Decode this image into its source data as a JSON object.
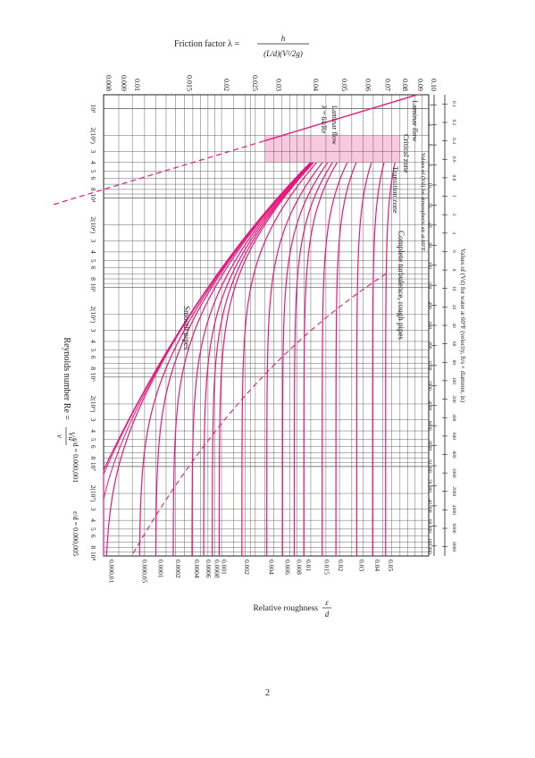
{
  "page": {
    "number": "2"
  },
  "chart_data": {
    "type": "line",
    "orientation": "rotated-90-clockwise",
    "colors": {
      "curves": "#e6197d",
      "grid": "#555555",
      "text": "#222222"
    },
    "ylabel": {
      "prefix": "Friction factor λ =",
      "numerator": "h",
      "denominator": "(L/d)(V²/2g)"
    },
    "xlabel": {
      "prefix": "Reynolds number Re =",
      "numerator": "Vd",
      "denominator": "ν"
    },
    "right_label": {
      "prefix": "Relative roughness",
      "numerator": "ε",
      "denominator": "d"
    },
    "top_scale_title": "Values of (Vd) for water at 60°F (velocity, ft/s × diameter, in)",
    "second_scale_title": "Values of (Vd) for atmospheric air at 60°F",
    "top_scale_ticks": [
      "0.1",
      "0.2",
      "0.4",
      "0.6",
      "0.8",
      "1",
      "2",
      "4",
      "6",
      "8",
      "10",
      "20",
      "40",
      "60",
      "80",
      "100",
      "200",
      "400",
      "600",
      "800",
      "1000",
      "2000",
      "4000",
      "6000",
      "8000"
    ],
    "second_scale_ticks": [
      "2",
      "4",
      "6",
      "8",
      "10",
      "20",
      "40",
      "60",
      "100",
      "200",
      "400",
      "600",
      "800",
      "1000",
      "2000",
      "4000",
      "6000",
      "8000",
      "10,000",
      "20,000",
      "40,000",
      "60,000",
      "100,000"
    ],
    "yticks": [
      "0.10",
      "0.09",
      "0.08",
      "0.07",
      "0.06",
      "0.05",
      "0.04",
      "0.03",
      "0.025",
      "0.02",
      "0.015",
      "0.01",
      "0.009",
      "0.008"
    ],
    "ytick_values": [
      0.1,
      0.09,
      0.08,
      0.07,
      0.06,
      0.05,
      0.04,
      0.03,
      0.025,
      0.02,
      0.015,
      0.01,
      0.009,
      0.008
    ],
    "xticks": [
      "10³",
      "2(10³)",
      "3",
      "4",
      "5",
      "6",
      "8",
      "10⁴",
      "2(10⁴)",
      "3",
      "4",
      "5",
      "6",
      "8",
      "10⁵",
      "2(10⁵)",
      "3",
      "4",
      "5",
      "6",
      "8",
      "10⁶",
      "2(10⁶)",
      "3",
      "4",
      "5",
      "6",
      "8",
      "10⁷",
      "2(10⁷)",
      "3",
      "4",
      "5",
      "6",
      "8",
      "10⁸"
    ],
    "xtick_values": [
      1000,
      2000,
      3000,
      4000,
      5000,
      6000,
      8000,
      10000,
      20000,
      30000,
      40000,
      50000,
      60000,
      80000,
      100000,
      200000,
      300000,
      400000,
      500000,
      600000,
      800000,
      1000000,
      2000000,
      3000000,
      4000000,
      5000000,
      6000000,
      8000000,
      10000000,
      20000000,
      30000000,
      40000000,
      50000000,
      60000000,
      80000000,
      100000000
    ],
    "xlim": [
      700,
      100000000
    ],
    "ylim": [
      0.008,
      0.1
    ],
    "xscale": "log",
    "yscale": "log",
    "grid": true,
    "roughness_labels": [
      "0.05",
      "0.04",
      "0.03",
      "0.02",
      "0.015",
      "0.01",
      "0.008",
      "0.006",
      "0.004",
      "0.002",
      "0.001",
      "0.0008",
      "0.0006",
      "0.0004",
      "0.0002",
      "0.0001",
      "0.000,05",
      "0.000,01"
    ],
    "roughness_values": [
      0.05,
      0.04,
      0.03,
      0.02,
      0.015,
      0.01,
      0.008,
      0.006,
      0.004,
      0.002,
      0.001,
      0.0008,
      0.0006,
      0.0004,
      0.0002,
      0.0001,
      5e-05,
      1e-05
    ],
    "annotations": {
      "laminar_flow": "Laminar flow",
      "laminar_formula": "λ = 64/Re",
      "laminar_zone": "Laminar flow",
      "critical_zone": "Critical zone",
      "transition_zone": "Transition zone",
      "complete_turbulence": "Complete turbulence, rough pipes",
      "smooth_pipes": "Smooth pipes",
      "eps_small_1": "ε/d = 0.000,001",
      "eps_small_2": "ε/d = 0.000,005"
    }
  }
}
